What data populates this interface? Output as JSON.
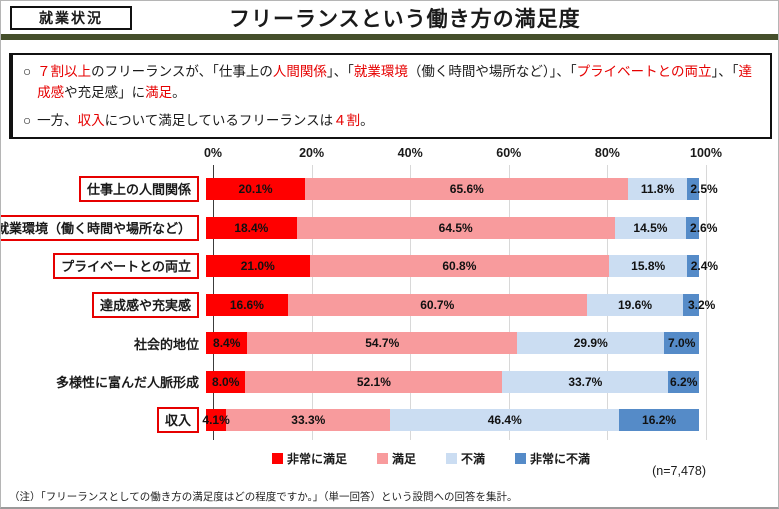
{
  "page": {
    "tag_label": "就業状況",
    "title": "フリーランスという働き方の満足度",
    "note": "（注）「フリーランスとしての働き方の満足度はどの程度ですか。」（単一回答）という設問への回答を集計。",
    "bullet_marker": "○",
    "accent_red": "#E60000",
    "olive_rule_color": "#454F2B"
  },
  "summary": {
    "bullets": [
      {
        "segments": [
          {
            "t": "７割以上",
            "red": true
          },
          {
            "t": "のフリーランスが、「仕事上の"
          },
          {
            "t": "人間関係",
            "red": true
          },
          {
            "t": "」、「"
          },
          {
            "t": "就業環境",
            "red": true
          },
          {
            "t": "（働く時間や場所など）」、「"
          },
          {
            "t": "プライベートとの両立",
            "red": true
          },
          {
            "t": "」、「"
          },
          {
            "t": "達成感",
            "red": true
          },
          {
            "t": "や充足感」に"
          },
          {
            "t": "満足",
            "red": true
          },
          {
            "t": "。"
          }
        ]
      },
      {
        "segments": [
          {
            "t": "一方、"
          },
          {
            "t": "収入",
            "red": true
          },
          {
            "t": "について満足しているフリーランスは"
          },
          {
            "t": "４割",
            "red": true
          },
          {
            "t": "。"
          }
        ]
      }
    ]
  },
  "chart_data": {
    "type": "bar",
    "orientation": "horizontal-stacked",
    "title": "フリーランスという働き方の満足度",
    "x_ticks": [
      "0%",
      "20%",
      "40%",
      "60%",
      "80%",
      "100%"
    ],
    "xlim": [
      0,
      100
    ],
    "grid": true,
    "legend_position": "bottom",
    "sample_size": "(n=7,478)",
    "categories": [
      {
        "label": "仕事上の人間関係",
        "boxed": true
      },
      {
        "label": "就業環境（働く時間や場所など）",
        "boxed": true
      },
      {
        "label": "プライベートとの両立",
        "boxed": true
      },
      {
        "label": "達成感や充実感",
        "boxed": true
      },
      {
        "label": "社会的地位",
        "boxed": false
      },
      {
        "label": "多様性に富んだ人脈形成",
        "boxed": false
      },
      {
        "label": "収入",
        "boxed": true
      }
    ],
    "series": [
      {
        "name": "非常に満足",
        "color": "#FF0000",
        "values": [
          20.1,
          18.4,
          21.0,
          16.6,
          8.4,
          8.0,
          4.1
        ]
      },
      {
        "name": "満足",
        "color": "#F89B9D",
        "values": [
          65.6,
          64.5,
          60.8,
          60.7,
          54.7,
          52.1,
          33.3
        ]
      },
      {
        "name": "不満",
        "color": "#CBDDF2",
        "values": [
          11.8,
          14.5,
          15.8,
          19.6,
          29.9,
          33.7,
          46.4
        ]
      },
      {
        "name": "非常に不満",
        "color": "#558BC8",
        "values": [
          2.5,
          2.6,
          2.4,
          3.2,
          7.0,
          6.2,
          16.2
        ]
      }
    ]
  }
}
